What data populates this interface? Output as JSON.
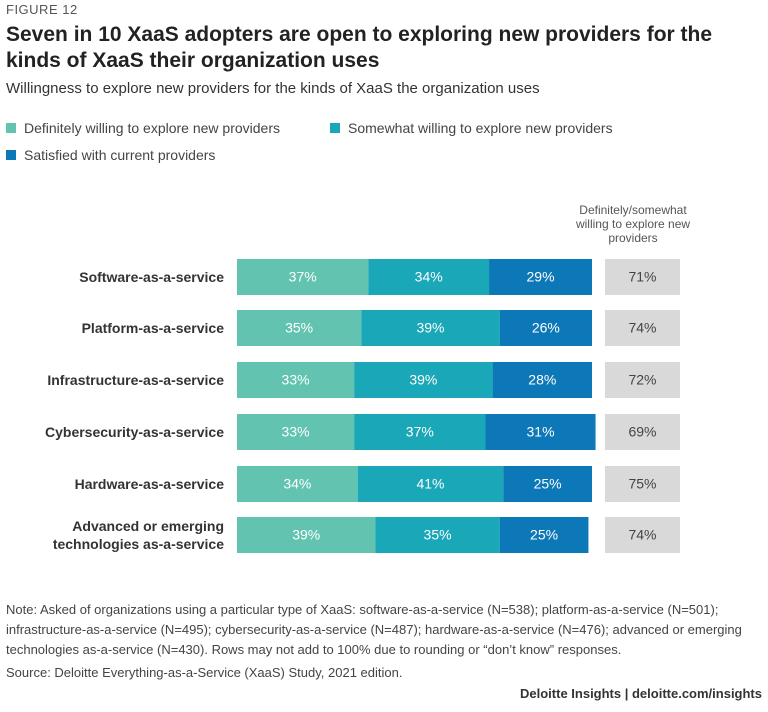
{
  "chart_data": {
    "type": "stacked-bar-horizontal",
    "figure_label": "FIGURE 12",
    "title": "Seven in 10 XaaS adopters are open to exploring new providers for the kinds of XaaS their organization uses",
    "subtitle": "Willingness to explore new providers for the kinds of XaaS the organization uses",
    "categories": [
      "Software-as-a-service",
      "Platform-as-a-service",
      "Infrastructure-as-a-service",
      "Cybersecurity-as-a-service",
      "Hardware-as-a-service",
      "Advanced or emerging technologies as-a-service"
    ],
    "xlim": [
      0,
      100
    ],
    "series": [
      {
        "name": "Definitely willing to explore new providers",
        "color": "#62c4b0",
        "values": [
          37,
          35,
          33,
          33,
          34,
          39
        ],
        "value_labels": [
          "37%",
          "35%",
          "33%",
          "33%",
          "34%",
          "39%"
        ]
      },
      {
        "name": "Somewhat willing to explore new providers",
        "color": "#1aa7b8",
        "values": [
          34,
          39,
          39,
          37,
          41,
          35
        ],
        "value_labels": [
          "34%",
          "39%",
          "39%",
          "37%",
          "41%",
          "35%"
        ]
      },
      {
        "name": "Satisfied with current providers",
        "color": "#0d78b7",
        "values": [
          29,
          26,
          28,
          31,
          25,
          25
        ],
        "value_labels": [
          "29%",
          "26%",
          "28%",
          "31%",
          "25%",
          "25%"
        ]
      }
    ],
    "totals": {
      "header": "Definitely/somewhat willing to explore new providers",
      "color": "#d9d9d9",
      "values": [
        71,
        74,
        72,
        69,
        75,
        74
      ],
      "value_labels": [
        "71%",
        "74%",
        "72%",
        "69%",
        "75%",
        "74%"
      ]
    },
    "note": "Note: Asked of organizations using a particular type of XaaS: software-as-a-service (N=538); platform-as-a-service (N=501); infrastructure-as-a-service (N=495); cybersecurity-as-a-service (N=487); hardware-as-a-service (N=476); advanced or emerging technologies as-a-service (N=430). Rows may not add to 100% due to rounding or “don’t know” responses.",
    "source": "Source: Deloitte Everything-as-a-Service (XaaS) Study, 2021 edition.",
    "branding": "Deloitte Insights | deloitte.com/insights"
  }
}
